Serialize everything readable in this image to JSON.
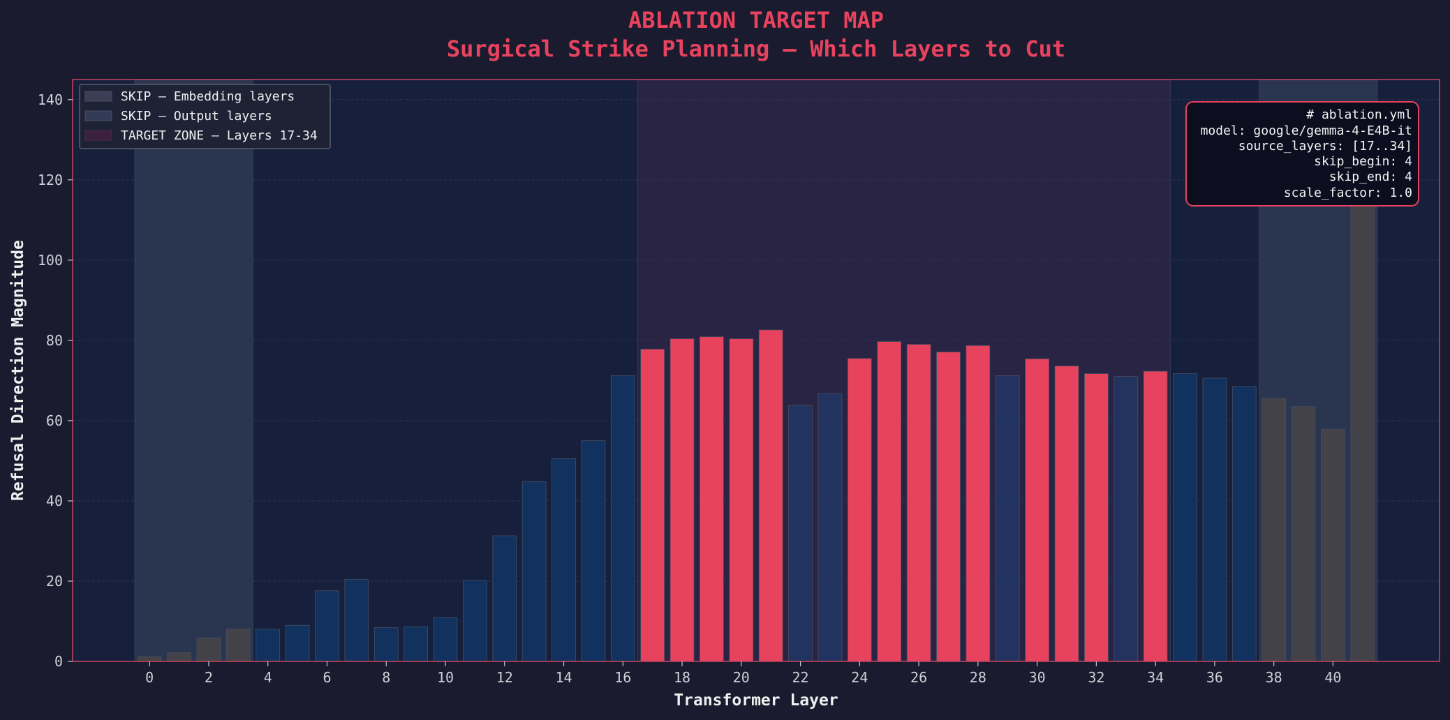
{
  "chart_data": {
    "type": "bar",
    "title": "ABLATION TARGET MAP",
    "subtitle": "Surgical Strike Planning — Which Layers to Cut",
    "xlabel": "Transformer Layer",
    "ylabel": "Refusal Direction Magnitude",
    "xlim": [
      -2.6,
      43.6
    ],
    "ylim": [
      0,
      145
    ],
    "x_ticks": [
      0,
      2,
      4,
      6,
      8,
      10,
      12,
      14,
      16,
      18,
      20,
      22,
      24,
      26,
      28,
      30,
      32,
      34,
      36,
      38,
      40
    ],
    "y_ticks": [
      0,
      20,
      40,
      60,
      80,
      100,
      120,
      140
    ],
    "grid": true,
    "legend_position": "upper-left",
    "legend": [
      {
        "label": "SKIP — Embedding layers",
        "color": "#3a3f56"
      },
      {
        "label": "SKIP — Output layers",
        "color": "#323a58"
      },
      {
        "label": "TARGET ZONE — Layers 17-34",
        "color": "#3b2040"
      }
    ],
    "bands": [
      {
        "name": "embedding-skip-band",
        "x_start": -0.5,
        "x_end": 3.5,
        "color": "#2a3550"
      },
      {
        "name": "target-zone-band",
        "x_start": 16.5,
        "x_end": 34.5,
        "color": "#2a2444"
      },
      {
        "name": "output-skip-band",
        "x_start": 37.5,
        "x_end": 41.5,
        "color": "#2a3550"
      }
    ],
    "layers": [
      0,
      1,
      2,
      3,
      4,
      5,
      6,
      7,
      8,
      9,
      10,
      11,
      12,
      13,
      14,
      15,
      16,
      17,
      18,
      19,
      20,
      21,
      22,
      23,
      24,
      25,
      26,
      27,
      28,
      29,
      30,
      31,
      32,
      33,
      34,
      35,
      36,
      37,
      38,
      39,
      40,
      41
    ],
    "values": [
      1.2,
      2.2,
      5.8,
      8.1,
      8.0,
      9.0,
      17.6,
      20.4,
      8.4,
      8.6,
      10.9,
      20.2,
      31.3,
      44.8,
      50.5,
      55.0,
      71.2,
      77.8,
      80.4,
      80.9,
      80.4,
      82.6,
      63.8,
      66.8,
      75.5,
      79.7,
      79.0,
      77.1,
      78.7,
      71.2,
      75.4,
      73.6,
      71.7,
      71.0,
      72.3,
      71.7,
      70.6,
      68.5,
      65.6,
      63.5,
      57.8,
      123.0
    ],
    "categories": [
      "skip",
      "skip",
      "skip",
      "skip",
      "normal",
      "normal",
      "normal",
      "normal",
      "normal",
      "normal",
      "normal",
      "normal",
      "normal",
      "normal",
      "normal",
      "normal",
      "normal",
      "target",
      "target",
      "target",
      "target",
      "target",
      "muted",
      "muted",
      "target",
      "target",
      "target",
      "target",
      "target",
      "muted",
      "target",
      "target",
      "target",
      "muted",
      "target",
      "normal",
      "normal",
      "normal",
      "skip",
      "skip",
      "skip",
      "skip"
    ],
    "colors": {
      "target": "#e8435e",
      "normal": "#11325e",
      "muted": "#223360",
      "skip": "#424248",
      "accent": "#e8435e",
      "frame": "#c8465e",
      "background": "#1a1b2e",
      "plot_background": "#161f3c"
    },
    "config_box": {
      "position": "upper-right",
      "lines": [
        "# ablation.yml",
        "model: google/gemma-4-E4B-it",
        "source_layers: [17..34]",
        "skip_begin: 4",
        "skip_end: 4",
        "scale_factor: 1.0"
      ]
    }
  }
}
